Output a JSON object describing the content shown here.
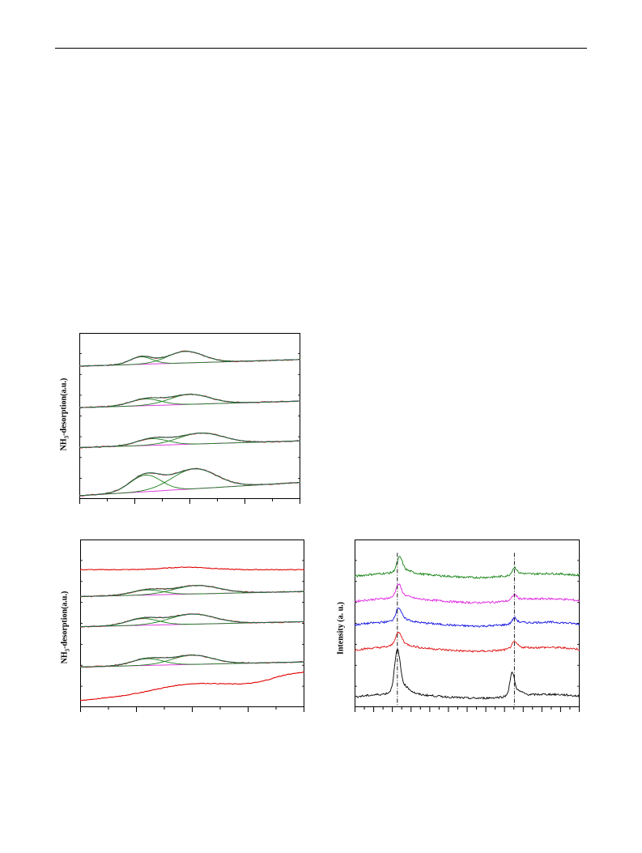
{
  "page": {
    "header_rule": true
  },
  "charts": {
    "tpd_a": {
      "ylabel_main": "NH",
      "ylabel_sub": "3",
      "ylabel_rest": "-desorption(a.u.)"
    },
    "tpd_b": {
      "ylabel_main": "NH",
      "ylabel_sub": "3",
      "ylabel_rest": "-desorption(a.u.)"
    },
    "xrd": {
      "ylabel": "Intensity (a. u.)"
    }
  },
  "chart_data": [
    {
      "id": "tpd_a",
      "type": "line",
      "ylabel": "NH3-desorption(a.u.)",
      "xlabel": "",
      "x_ticks_major": 4,
      "colors": {
        "experimental": "#e00000",
        "fit_envelope": "#2020c8",
        "components": "#208020",
        "baseline": "#e040e0"
      },
      "series": [
        {
          "offset": 0.8,
          "base_slope": 0.04,
          "peaks": [
            {
              "c": 0.28,
              "w": 0.05,
              "h": 0.045
            },
            {
              "c": 0.48,
              "w": 0.08,
              "h": 0.07
            }
          ]
        },
        {
          "offset": 0.55,
          "base_slope": 0.04,
          "peaks": [
            {
              "c": 0.3,
              "w": 0.07,
              "h": 0.04
            },
            {
              "c": 0.5,
              "w": 0.09,
              "h": 0.06
            }
          ]
        },
        {
          "offset": 0.31,
          "base_slope": 0.04,
          "peaks": [
            {
              "c": 0.33,
              "w": 0.07,
              "h": 0.04
            },
            {
              "c": 0.55,
              "w": 0.1,
              "h": 0.065
            }
          ]
        },
        {
          "offset": 0.02,
          "base_slope": 0.08,
          "peaks": [
            {
              "c": 0.3,
              "w": 0.07,
              "h": 0.1
            },
            {
              "c": 0.52,
              "w": 0.1,
              "h": 0.12
            }
          ]
        }
      ]
    },
    {
      "id": "tpd_b",
      "type": "line",
      "ylabel": "NH3-desorption(a.u.)",
      "xlabel": "",
      "x_ticks_major": 4,
      "colors": {
        "experimental": "#e00000",
        "fit_envelope": "#2020c8",
        "components": "#208020",
        "baseline": "#e040e0"
      },
      "series": [
        {
          "offset": 0.82,
          "base_slope": 0.0,
          "flat": true,
          "peaks": [
            {
              "c": 0.48,
              "w": 0.1,
              "h": 0.015
            }
          ]
        },
        {
          "offset": 0.66,
          "base_slope": 0.03,
          "peaks": [
            {
              "c": 0.3,
              "w": 0.07,
              "h": 0.03
            },
            {
              "c": 0.52,
              "w": 0.1,
              "h": 0.05
            }
          ]
        },
        {
          "offset": 0.48,
          "base_slope": 0.03,
          "peaks": [
            {
              "c": 0.28,
              "w": 0.07,
              "h": 0.04
            },
            {
              "c": 0.5,
              "w": 0.1,
              "h": 0.06
            }
          ]
        },
        {
          "offset": 0.24,
          "base_slope": 0.03,
          "peaks": [
            {
              "c": 0.3,
              "w": 0.07,
              "h": 0.04
            },
            {
              "c": 0.5,
              "w": 0.09,
              "h": 0.055
            }
          ]
        },
        {
          "offset": 0.04,
          "base_slope": 0.12,
          "raw_only": true,
          "peaks": [
            {
              "c": 0.48,
              "w": 0.15,
              "h": 0.04
            }
          ]
        }
      ]
    },
    {
      "id": "xrd",
      "type": "line",
      "ylabel": "Intensity (a. u.)",
      "xlabel": "",
      "x_ticks_major": 6,
      "reference_lines": [
        0.19,
        0.71
      ],
      "series": [
        {
          "color": "#108010",
          "offset": 0.78,
          "peaks": [
            {
              "c": 0.2,
              "w": 0.012,
              "h": 0.08
            },
            {
              "c": 0.71,
              "w": 0.01,
              "h": 0.04
            }
          ]
        },
        {
          "color": "#e020e0",
          "offset": 0.63,
          "peaks": [
            {
              "c": 0.195,
              "w": 0.012,
              "h": 0.07
            },
            {
              "c": 0.71,
              "w": 0.01,
              "h": 0.03
            }
          ]
        },
        {
          "color": "#1010e0",
          "offset": 0.49,
          "peaks": [
            {
              "c": 0.195,
              "w": 0.012,
              "h": 0.07
            },
            {
              "c": 0.71,
              "w": 0.01,
              "h": 0.03
            }
          ]
        },
        {
          "color": "#e01010",
          "offset": 0.34,
          "peaks": [
            {
              "c": 0.195,
              "w": 0.014,
              "h": 0.07
            },
            {
              "c": 0.71,
              "w": 0.012,
              "h": 0.035
            }
          ]
        },
        {
          "color": "#000000",
          "offset": 0.06,
          "peaks": [
            {
              "c": 0.19,
              "w": 0.012,
              "h": 0.22
            },
            {
              "c": 0.7,
              "w": 0.01,
              "h": 0.12
            }
          ]
        }
      ]
    }
  ]
}
